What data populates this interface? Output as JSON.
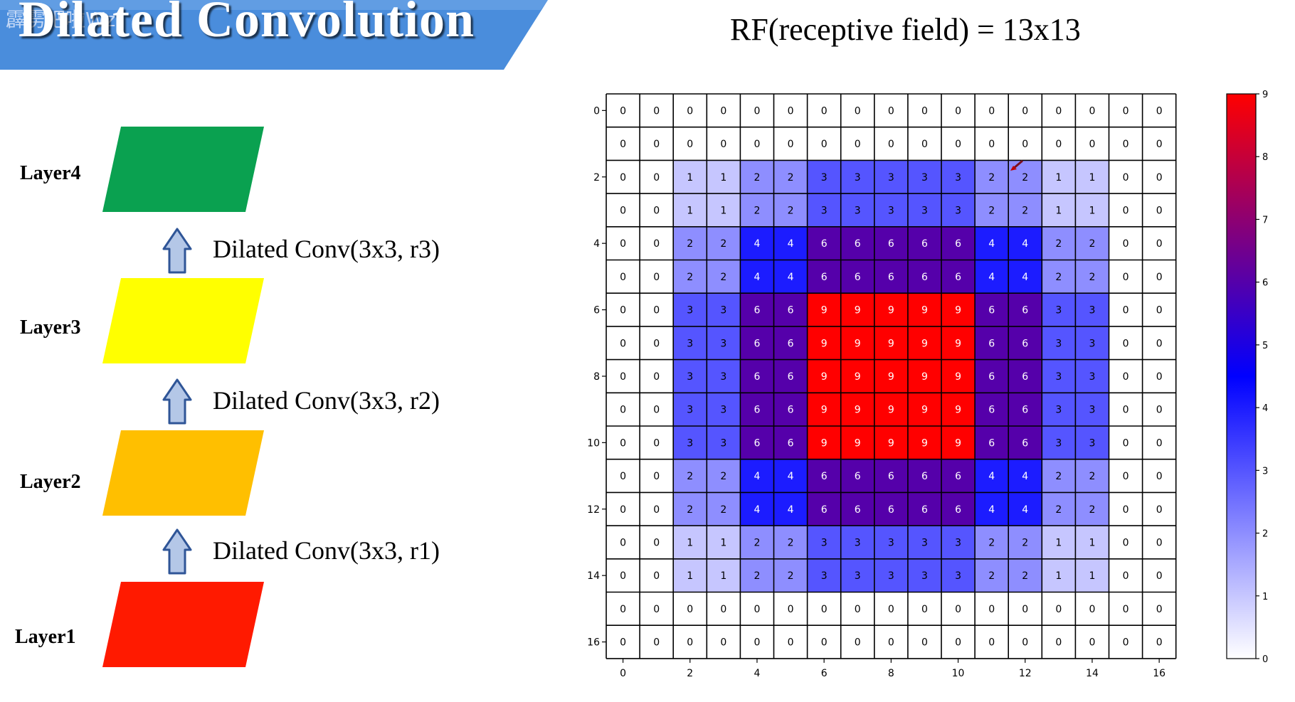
{
  "header": {
    "title": "Dilated Convolution",
    "watermark": "霹雳吧啦Wz"
  },
  "rf_title": "RF(receptive field) = 13x13",
  "layers": [
    {
      "label": "Layer4",
      "color": "#0aa150"
    },
    {
      "label": "Layer3",
      "color": "#ffff00"
    },
    {
      "label": "Layer2",
      "color": "#ffbf00"
    },
    {
      "label": "Layer1",
      "color": "#ff1a00"
    }
  ],
  "operations": [
    {
      "label": "Dilated Conv(3x3, r3)"
    },
    {
      "label": "Dilated Conv(3x3, r2)"
    },
    {
      "label": "Dilated Conv(3x3, r1)"
    }
  ],
  "colors": {
    "banner": "#4a8ddc",
    "banner_light": "#7fb2ea",
    "arrow_fill": "#b4c7e7",
    "arrow_stroke": "#2f5597"
  },
  "chart_data": {
    "type": "heatmap",
    "rows": 17,
    "cols": 17,
    "x_ticks": [
      0,
      2,
      4,
      6,
      8,
      10,
      12,
      14,
      16
    ],
    "y_ticks": [
      0,
      2,
      4,
      6,
      8,
      10,
      12,
      14,
      16
    ],
    "colorbar": {
      "min": 0,
      "max": 9,
      "ticks": [
        0,
        1,
        2,
        3,
        4,
        5,
        6,
        7,
        8,
        9
      ],
      "colors": [
        "#ffffff",
        "#0000ff",
        "#ff0000"
      ]
    },
    "values": [
      [
        0,
        0,
        0,
        0,
        0,
        0,
        0,
        0,
        0,
        0,
        0,
        0,
        0,
        0,
        0,
        0,
        0
      ],
      [
        0,
        0,
        0,
        0,
        0,
        0,
        0,
        0,
        0,
        0,
        0,
        0,
        0,
        0,
        0,
        0,
        0
      ],
      [
        0,
        0,
        1,
        1,
        2,
        2,
        3,
        3,
        3,
        3,
        3,
        2,
        2,
        1,
        1,
        0,
        0
      ],
      [
        0,
        0,
        1,
        1,
        2,
        2,
        3,
        3,
        3,
        3,
        3,
        2,
        2,
        1,
        1,
        0,
        0
      ],
      [
        0,
        0,
        2,
        2,
        4,
        4,
        6,
        6,
        6,
        6,
        6,
        4,
        4,
        2,
        2,
        0,
        0
      ],
      [
        0,
        0,
        2,
        2,
        4,
        4,
        6,
        6,
        6,
        6,
        6,
        4,
        4,
        2,
        2,
        0,
        0
      ],
      [
        0,
        0,
        3,
        3,
        6,
        6,
        9,
        9,
        9,
        9,
        9,
        6,
        6,
        3,
        3,
        0,
        0
      ],
      [
        0,
        0,
        3,
        3,
        6,
        6,
        9,
        9,
        9,
        9,
        9,
        6,
        6,
        3,
        3,
        0,
        0
      ],
      [
        0,
        0,
        3,
        3,
        6,
        6,
        9,
        9,
        9,
        9,
        9,
        6,
        6,
        3,
        3,
        0,
        0
      ],
      [
        0,
        0,
        3,
        3,
        6,
        6,
        9,
        9,
        9,
        9,
        9,
        6,
        6,
        3,
        3,
        0,
        0
      ],
      [
        0,
        0,
        3,
        3,
        6,
        6,
        9,
        9,
        9,
        9,
        9,
        6,
        6,
        3,
        3,
        0,
        0
      ],
      [
        0,
        0,
        2,
        2,
        4,
        4,
        6,
        6,
        6,
        6,
        6,
        4,
        4,
        2,
        2,
        0,
        0
      ],
      [
        0,
        0,
        2,
        2,
        4,
        4,
        6,
        6,
        6,
        6,
        6,
        4,
        4,
        2,
        2,
        0,
        0
      ],
      [
        0,
        0,
        1,
        1,
        2,
        2,
        3,
        3,
        3,
        3,
        3,
        2,
        2,
        1,
        1,
        0,
        0
      ],
      [
        0,
        0,
        1,
        1,
        2,
        2,
        3,
        3,
        3,
        3,
        3,
        2,
        2,
        1,
        1,
        0,
        0
      ],
      [
        0,
        0,
        0,
        0,
        0,
        0,
        0,
        0,
        0,
        0,
        0,
        0,
        0,
        0,
        0,
        0,
        0
      ],
      [
        0,
        0,
        0,
        0,
        0,
        0,
        0,
        0,
        0,
        0,
        0,
        0,
        0,
        0,
        0,
        0,
        0
      ]
    ]
  }
}
